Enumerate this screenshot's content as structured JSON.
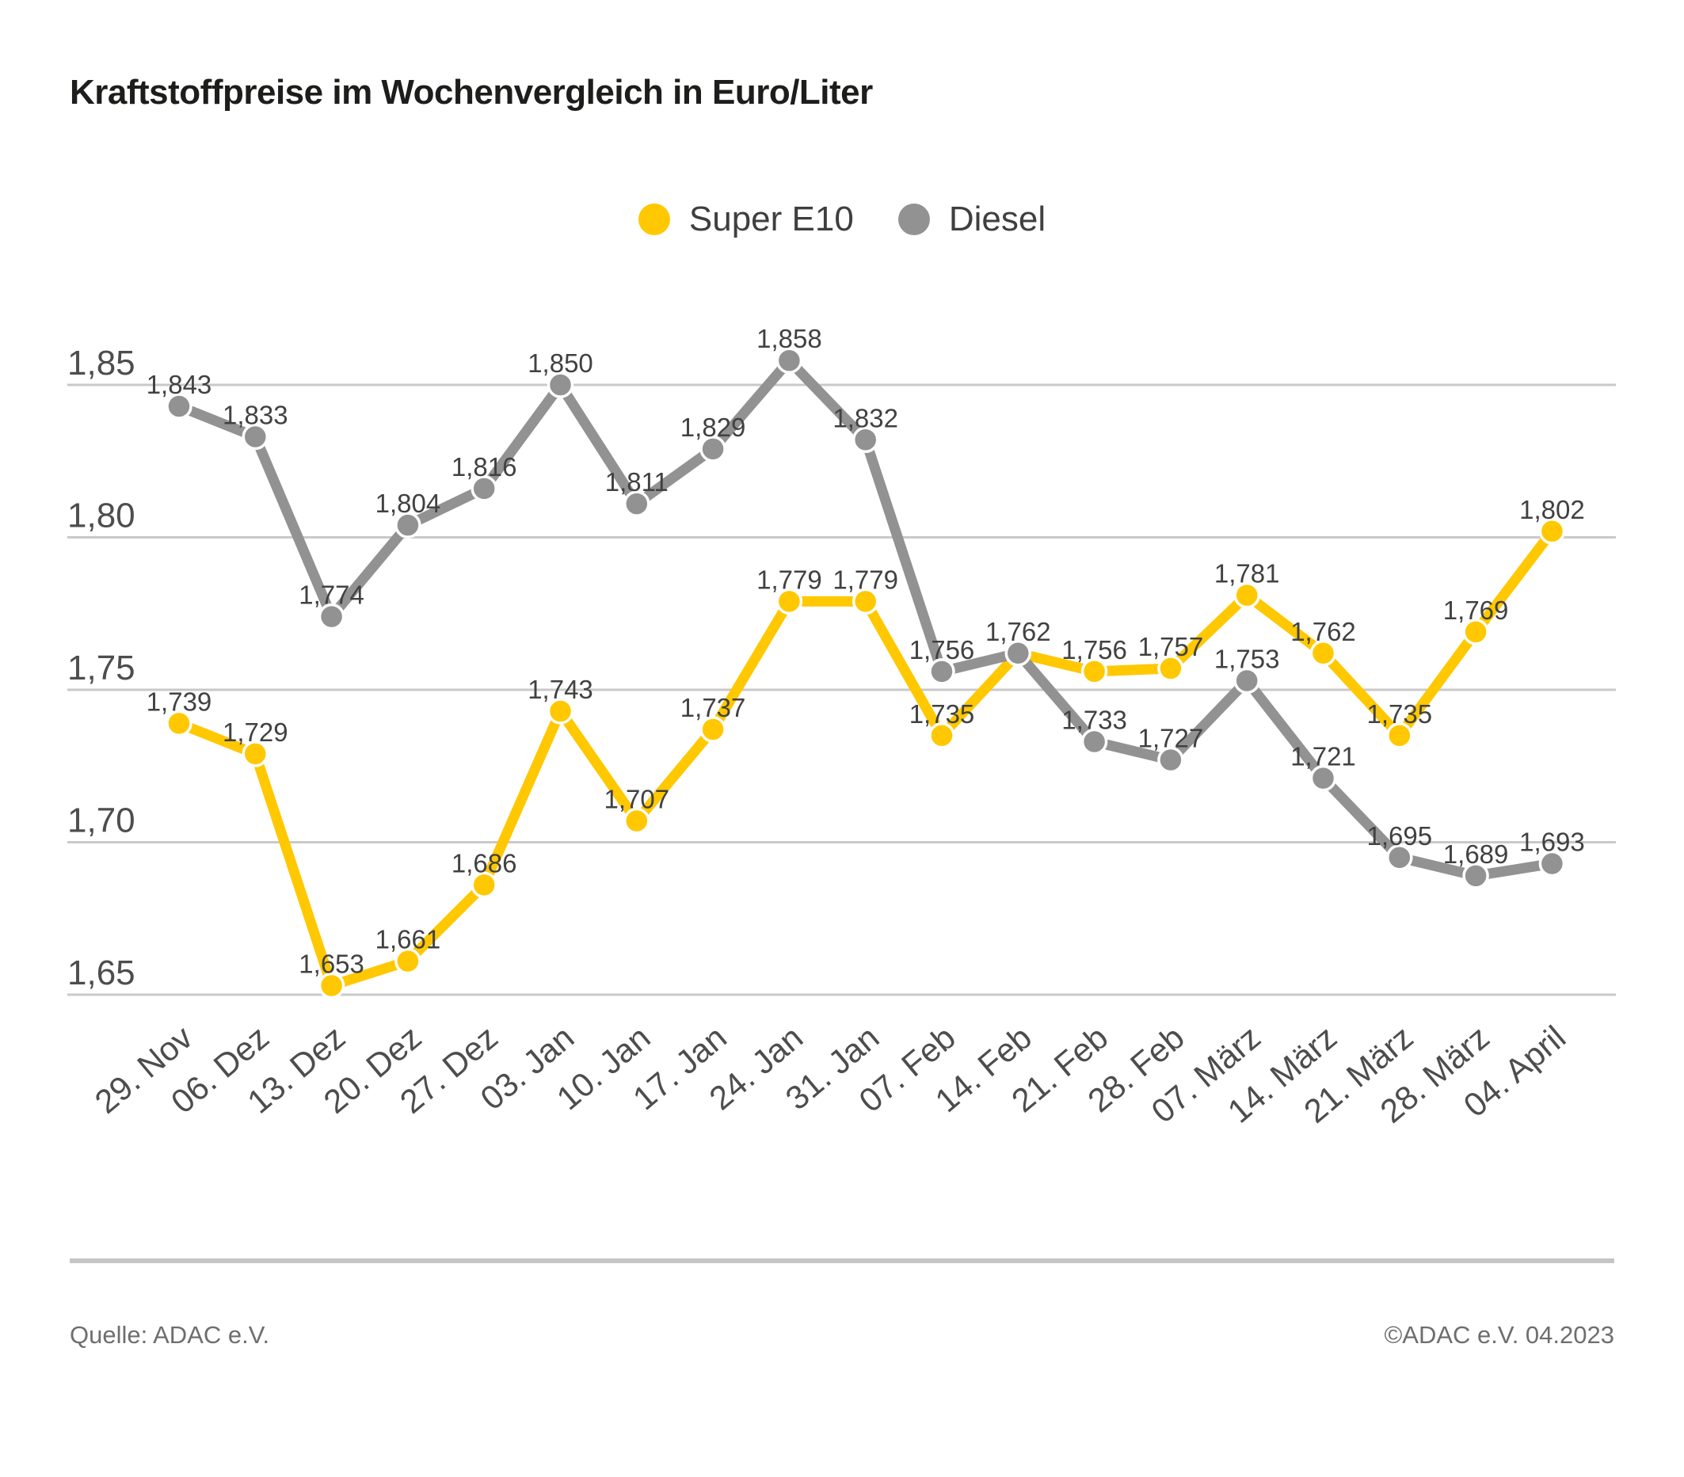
{
  "title": "Kraftstoffpreise im Wochenvergleich in Euro/Liter",
  "legend": [
    {
      "label": "Super E10",
      "color": "#FFC800"
    },
    {
      "label": "Diesel",
      "color": "#929292"
    }
  ],
  "footer": {
    "source": "Quelle: ADAC e.V.",
    "copyright": "©ADAC e.V. 04.2023"
  },
  "chart_data": {
    "type": "line",
    "title": "Kraftstoffpreise im Wochenvergleich in Euro/Liter",
    "unit": "Euro/Liter",
    "grid": true,
    "legend_position": "top-center",
    "x_labels": [
      "29. Nov",
      "06. Dez",
      "13. Dez",
      "20. Dez",
      "27. Dez",
      "03. Jan",
      "10. Jan",
      "17. Jan",
      "24. Jan",
      "31. Jan",
      "07. Feb",
      "14. Feb",
      "21. Feb",
      "28. Feb",
      "07. März",
      "14. März",
      "21. März",
      "28. März",
      "04. April"
    ],
    "y_ticks": [
      {
        "label": "1,85",
        "value": 1.85
      },
      {
        "label": "1,80",
        "value": 1.8
      },
      {
        "label": "1,75",
        "value": 1.75
      },
      {
        "label": "1,70",
        "value": 1.7
      },
      {
        "label": "1,65",
        "value": 1.65
      }
    ],
    "ylim": [
      1.63,
      1.88
    ],
    "series": [
      {
        "name": "Super E10",
        "color": "#FFC800",
        "values": [
          1.739,
          1.729,
          1.653,
          1.661,
          1.686,
          1.743,
          1.707,
          1.737,
          1.779,
          1.779,
          1.735,
          1.762,
          1.756,
          1.757,
          1.781,
          1.762,
          1.735,
          1.769,
          1.802
        ],
        "point_labels": [
          "1,739",
          "1,729",
          "1,653",
          "1,661",
          "1,686",
          "1,743",
          "1,707",
          "1,737",
          "1,779",
          "1,779",
          "1,735",
          "",
          "1,756",
          "1,757",
          "1,781",
          "1,762",
          "1,735",
          "1,769",
          "1,802"
        ]
      },
      {
        "name": "Diesel",
        "color": "#929292",
        "values": [
          1.843,
          1.833,
          1.774,
          1.804,
          1.816,
          1.85,
          1.811,
          1.829,
          1.858,
          1.832,
          1.756,
          1.762,
          1.733,
          1.727,
          1.753,
          1.721,
          1.695,
          1.689,
          1.693
        ],
        "point_labels": [
          "1,843",
          "1,833",
          "1,774",
          "1,804",
          "1,816",
          "1,850",
          "1,811",
          "1,829",
          "1,858",
          "1,832",
          "1,756",
          "1,762",
          "1,733",
          "1,727",
          "1,753",
          "1,721",
          "1,695",
          "1,689",
          "1,693"
        ]
      }
    ]
  }
}
